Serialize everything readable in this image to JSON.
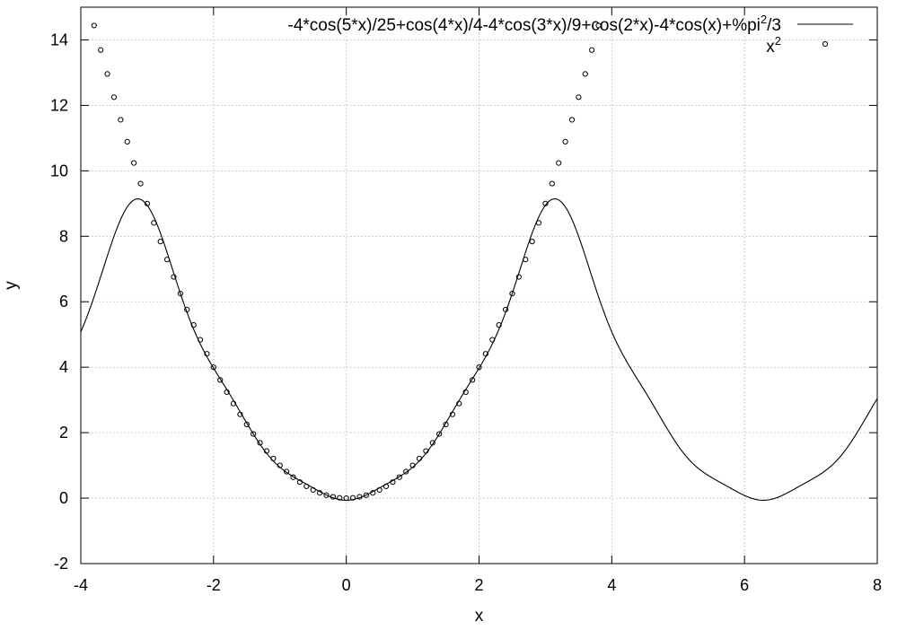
{
  "chart_data": {
    "type": "line",
    "title": "",
    "xlabel": "x",
    "ylabel": "y",
    "xlim": [
      -4,
      8
    ],
    "ylim": [
      -2,
      15
    ],
    "xticks": [
      -4,
      -2,
      0,
      2,
      4,
      6,
      8
    ],
    "yticks": [
      -2,
      0,
      2,
      4,
      6,
      8,
      10,
      12,
      14
    ],
    "grid": true,
    "legend_position": "top-right",
    "series": [
      {
        "name": "-4*cos(5*x)/25+cos(4*x)/4-4*cos(3*x)/9+cos(2*x)-4*cos(x)+%pi^2/3",
        "legend_main": "-4*cos(5*x)/25+cos(4*x)/4-4*cos(3*x)/9+cos(2*x)-4*cos(x)+%pi",
        "legend_sup": "2",
        "legend_tail": "/3",
        "style": "line",
        "coefficients": {
          "constant": 3.289868,
          "cos_x": -4,
          "cos_2x": 1,
          "cos_3x": -0.444444,
          "cos_4x": 0.25,
          "cos_5x": -0.16
        },
        "x_range": [
          -4,
          8
        ]
      },
      {
        "name": "x^2",
        "legend_main": "x",
        "legend_sup": "2",
        "style": "points",
        "exponent": 2,
        "x_start": -3.8,
        "x_step": 0.1
      }
    ]
  }
}
